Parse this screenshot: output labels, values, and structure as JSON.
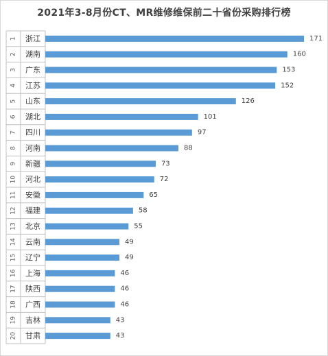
{
  "chart_data": {
    "type": "bar",
    "orientation": "horizontal",
    "title": "2021年3-8月份CT、MR维修维保前二十省份采购排行榜",
    "ranks": [
      "1",
      "2",
      "3",
      "4",
      "5",
      "6",
      "7",
      "8",
      "9",
      "10",
      "11",
      "12",
      "13",
      "14",
      "15",
      "16",
      "17",
      "18",
      "19",
      "20"
    ],
    "categories": [
      "浙江",
      "湖南",
      "广东",
      "江苏",
      "山东",
      "湖北",
      "四川",
      "河南",
      "新疆",
      "河北",
      "安徽",
      "福建",
      "北京",
      "云南",
      "辽宁",
      "上海",
      "陕西",
      "广西",
      "吉林",
      "甘肃"
    ],
    "values": [
      171,
      160,
      153,
      152,
      126,
      101,
      97,
      88,
      73,
      72,
      65,
      58,
      55,
      49,
      49,
      46,
      46,
      46,
      43,
      43
    ],
    "xlim": [
      0,
      171
    ],
    "bar_color": "#5b9bd5",
    "grid": false,
    "legend": "none"
  }
}
